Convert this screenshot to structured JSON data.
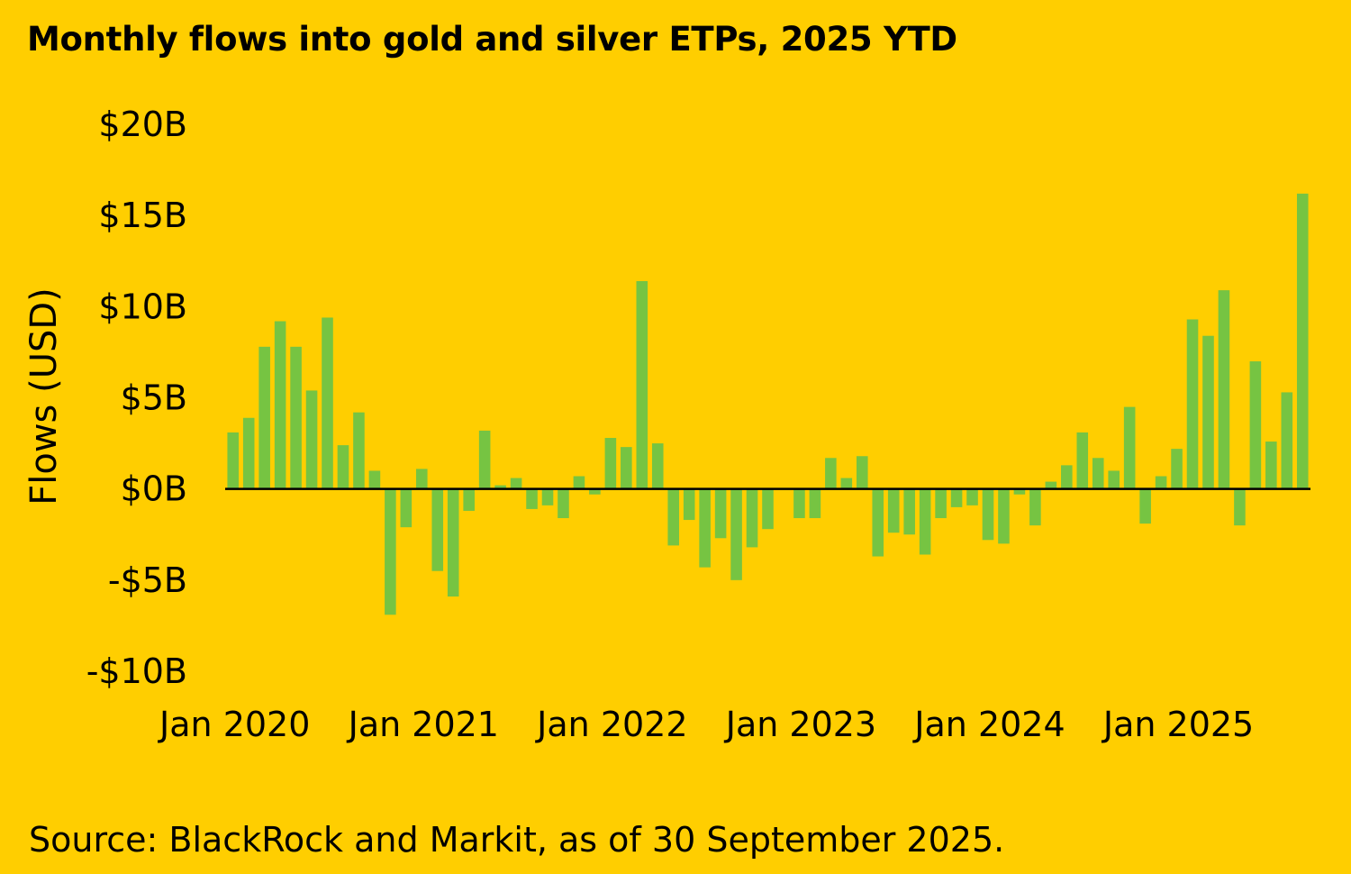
{
  "source": "Source: BlackRock and Markit, as of 30 September 2025.",
  "colors": {
    "background": "#FFCE00",
    "bar": "#76C442",
    "axis": "#000000"
  },
  "chart_data": {
    "type": "bar",
    "title": "Monthly flows into gold and silver ETPs, 2025 YTD",
    "xlabel": "",
    "ylabel": "Flows (USD)",
    "ylim": [
      -10,
      20
    ],
    "yticks": [
      20,
      15,
      10,
      5,
      0,
      -5,
      -10
    ],
    "ytick_labels": [
      "$20B",
      "$15B",
      "$10B",
      "$5B",
      "$0B",
      "-$5B",
      "-$10B"
    ],
    "xtick_labels": [
      "Jan 2020",
      "Jan 2021",
      "Jan 2022",
      "Jan 2023",
      "Jan 2024",
      "Jan 2025"
    ],
    "xtick_indices": [
      0,
      12,
      24,
      36,
      48,
      60
    ],
    "grid": false,
    "legend": "none",
    "categories": [
      "Jan 2020",
      "Feb 2020",
      "Mar 2020",
      "Apr 2020",
      "May 2020",
      "Jun 2020",
      "Jul 2020",
      "Aug 2020",
      "Sep 2020",
      "Oct 2020",
      "Nov 2020",
      "Dec 2020",
      "Jan 2021",
      "Feb 2021",
      "Mar 2021",
      "Apr 2021",
      "May 2021",
      "Jun 2021",
      "Jul 2021",
      "Aug 2021",
      "Sep 2021",
      "Oct 2021",
      "Nov 2021",
      "Dec 2021",
      "Jan 2022",
      "Feb 2022",
      "Mar 2022",
      "Apr 2022",
      "May 2022",
      "Jun 2022",
      "Jul 2022",
      "Aug 2022",
      "Sep 2022",
      "Oct 2022",
      "Nov 2022",
      "Dec 2022",
      "Jan 2023",
      "Feb 2023",
      "Mar 2023",
      "Apr 2023",
      "May 2023",
      "Jun 2023",
      "Jul 2023",
      "Aug 2023",
      "Sep 2023",
      "Oct 2023",
      "Nov 2023",
      "Dec 2023",
      "Jan 2024",
      "Feb 2024",
      "Mar 2024",
      "Apr 2024",
      "May 2024",
      "Jun 2024",
      "Jul 2024",
      "Aug 2024",
      "Sep 2024",
      "Oct 2024",
      "Nov 2024",
      "Dec 2024",
      "Jan 2025",
      "Feb 2025",
      "Mar 2025",
      "Apr 2025",
      "May 2025",
      "Jun 2025",
      "Jul 2025",
      "Aug 2025",
      "Sep 2025"
    ],
    "values": [
      3.1,
      3.9,
      7.8,
      9.2,
      7.8,
      5.4,
      9.4,
      2.4,
      4.2,
      1.0,
      -6.9,
      -2.1,
      1.1,
      -4.5,
      -5.9,
      -1.2,
      3.2,
      0.2,
      0.6,
      -1.1,
      -0.9,
      -1.6,
      0.7,
      -0.3,
      2.8,
      2.3,
      11.4,
      2.5,
      -3.1,
      -1.7,
      -4.3,
      -2.7,
      -5.0,
      -3.2,
      -2.2,
      0.0,
      -1.6,
      -1.6,
      1.7,
      0.6,
      1.8,
      -3.7,
      -2.4,
      -2.5,
      -3.6,
      -1.6,
      -1.0,
      -0.9,
      -2.8,
      -3.0,
      -0.3,
      -2.0,
      0.4,
      1.3,
      3.1,
      1.7,
      1.0,
      4.5,
      -1.9,
      0.7,
      2.2,
      9.3,
      8.4,
      10.9,
      -2.0,
      7.0,
      2.6,
      5.3,
      16.2
    ]
  }
}
